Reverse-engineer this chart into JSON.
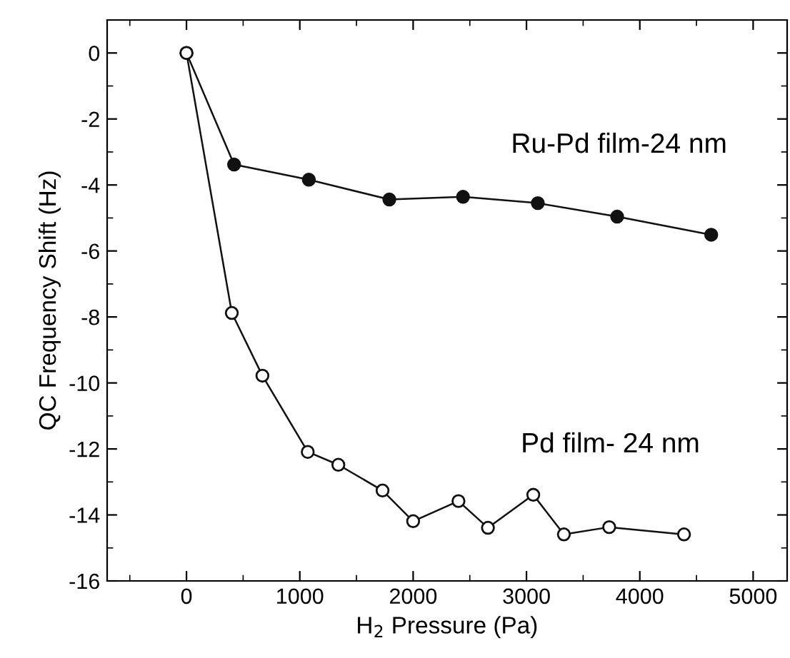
{
  "chart_data": {
    "type": "line",
    "xlabel": "H$_{2}$ Pressure (Pa)",
    "ylabel": "QC Frequency Shift (Hz)",
    "xlim": [
      -700,
      5300
    ],
    "xticks": [
      0,
      1000,
      2000,
      3000,
      4000,
      5000
    ],
    "ylim": [
      -16,
      1
    ],
    "yticks": [
      {
        "value": 0,
        "label": "0"
      },
      {
        "value": -2,
        "label": "-2"
      },
      {
        "value": -4,
        "label": "-4"
      },
      {
        "value": -6,
        "label": "-6"
      },
      {
        "value": -8,
        "label": "-8"
      },
      {
        "value": -10,
        "label": "-10"
      },
      {
        "value": -12,
        "label": "-12"
      },
      {
        "value": -14,
        "label": "-14"
      },
      {
        "value": -16,
        "label": "-16"
      }
    ],
    "grid": false,
    "legend": false,
    "series": [
      {
        "name": "Ru-Pd film-24 nm",
        "color": "#111111",
        "marker": "circle",
        "x": [
          0,
          420,
          1080,
          1790,
          2440,
          3100,
          3800,
          4630
        ],
        "values": [
          0,
          -3.38,
          -3.84,
          -4.44,
          -4.36,
          -4.55,
          -4.96,
          -5.51
        ]
      },
      {
        "name": "Pd film- 24 nm",
        "color": "#111111",
        "marker": "circle",
        "x": [
          0,
          400,
          670,
          1070,
          1340,
          1730,
          2000,
          2400,
          2660,
          3060,
          3330,
          3730,
          4390
        ],
        "values": [
          0,
          -7.88,
          -9.78,
          -12.09,
          -12.48,
          -13.26,
          -14.19,
          -13.58,
          -14.39,
          -13.39,
          -14.59,
          -14.37,
          -14.59
        ]
      }
    ]
  }
}
